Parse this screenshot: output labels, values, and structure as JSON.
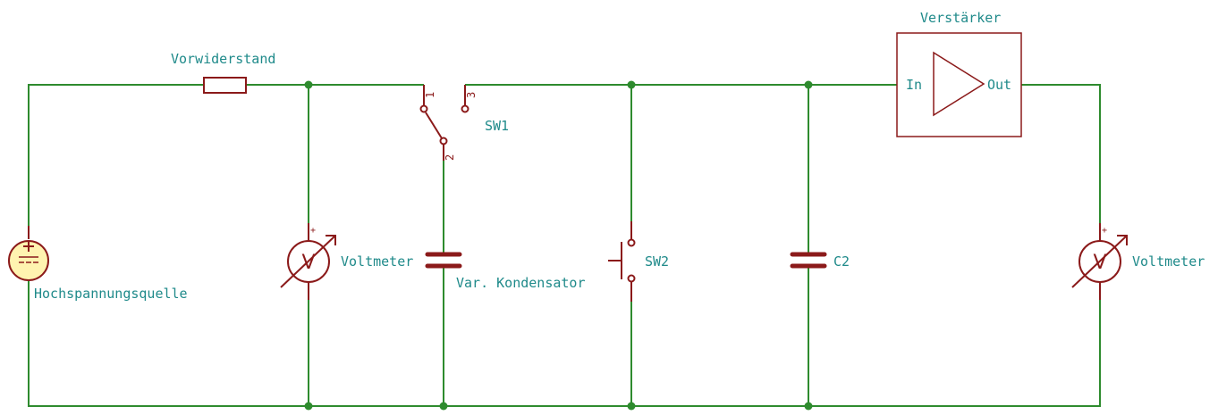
{
  "labels": {
    "source": "Hochspannungsquelle",
    "resistor": "Vorwiderstand",
    "voltmeter_left": "Voltmeter",
    "voltmeter_right": "Voltmeter",
    "switch1": "SW1",
    "switch2": "SW2",
    "var_capacitor": "Var. Kondensator",
    "capacitor2": "C2",
    "amplifier": "Verstärker",
    "amp_in": "In",
    "amp_out": "Out"
  },
  "pins": {
    "sw1_pin1": "1",
    "sw1_pin2": "2",
    "sw1_pin3": "3"
  },
  "symbols": {
    "voltmeter_glyph": "V",
    "plus": "+"
  },
  "colors": {
    "wire": "#2e8b2e",
    "component": "#8b1a1a",
    "label": "#1f8a8a",
    "source_fill": "#fff3b0"
  }
}
